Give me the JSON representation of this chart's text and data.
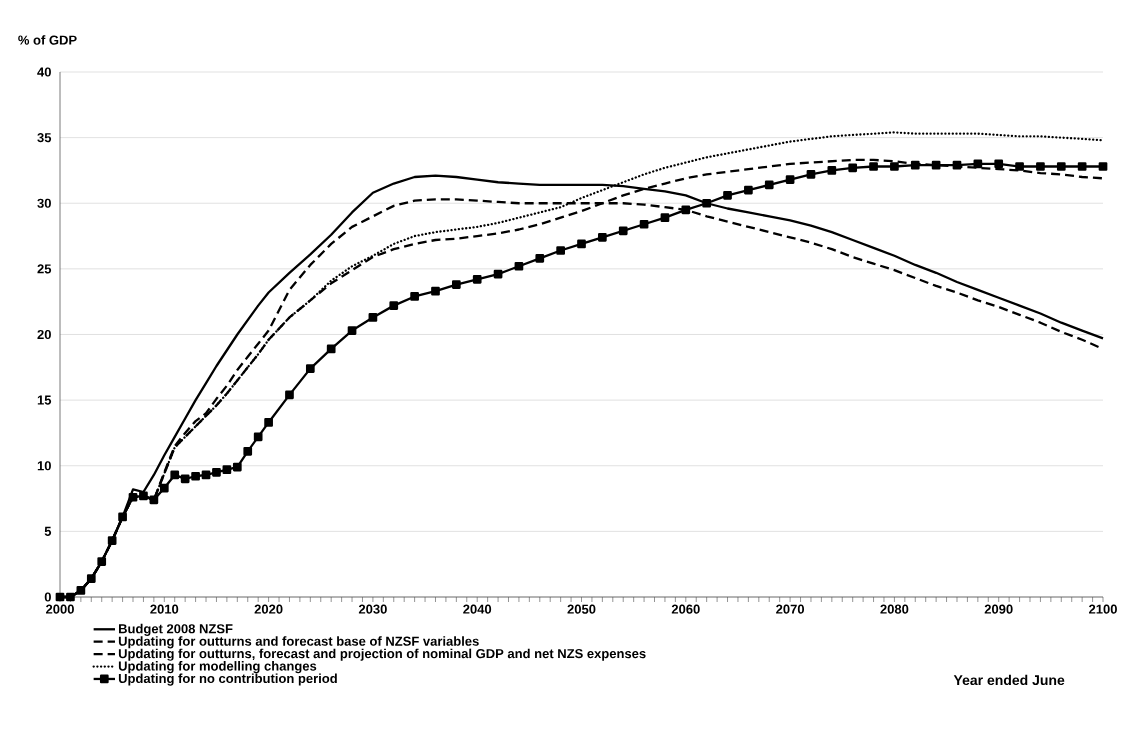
{
  "chart_data": {
    "type": "line",
    "ylabel": "% of GDP",
    "xlabel": "Year ended June",
    "x": [
      2000,
      2001,
      2002,
      2003,
      2004,
      2005,
      2006,
      2007,
      2008,
      2009,
      2010,
      2011,
      2012,
      2013,
      2014,
      2015,
      2016,
      2017,
      2018,
      2019,
      2020,
      2022,
      2024,
      2026,
      2028,
      2030,
      2032,
      2034,
      2036,
      2038,
      2040,
      2042,
      2044,
      2046,
      2048,
      2050,
      2052,
      2054,
      2056,
      2058,
      2060,
      2062,
      2064,
      2066,
      2068,
      2070,
      2072,
      2074,
      2076,
      2078,
      2080,
      2082,
      2084,
      2086,
      2088,
      2090,
      2092,
      2094,
      2096,
      2098,
      2100
    ],
    "series": [
      {
        "name": "Budget 2008 NZSF",
        "color": "#000000",
        "line_style": "solid",
        "marker": "none",
        "values": [
          0,
          0,
          0.5,
          1.4,
          2.7,
          4.3,
          6.1,
          8.2,
          8.0,
          9.3,
          10.8,
          12.2,
          13.6,
          15.0,
          16.3,
          17.6,
          18.8,
          20.0,
          21.1,
          22.2,
          23.2,
          24.7,
          26.1,
          27.6,
          29.3,
          30.8,
          31.5,
          32.0,
          32.1,
          32.0,
          31.8,
          31.6,
          31.5,
          31.4,
          31.4,
          31.4,
          31.4,
          31.3,
          31.1,
          30.9,
          30.6,
          30.0,
          29.6,
          29.3,
          29.0,
          28.7,
          28.3,
          27.8,
          27.2,
          26.6,
          26.0,
          25.3,
          24.7,
          24.0,
          23.4,
          22.8,
          22.2,
          21.6,
          20.9,
          20.3,
          19.7
        ]
      },
      {
        "name": "Updating for outturns and forecast base of NZSF variables",
        "color": "#000000",
        "line_style": "dashed",
        "marker": "none",
        "values": [
          0,
          0,
          0.5,
          1.4,
          2.7,
          4.3,
          6.1,
          7.6,
          7.7,
          7.4,
          9.5,
          11.5,
          12.5,
          13.4,
          14.0,
          15.1,
          16.1,
          17.3,
          18.3,
          19.3,
          20.3,
          23.4,
          25.3,
          26.9,
          28.2,
          29.0,
          29.8,
          30.2,
          30.3,
          30.3,
          30.2,
          30.1,
          30.0,
          30.0,
          30.0,
          30.0,
          30.0,
          30.0,
          29.9,
          29.7,
          29.5,
          29.0,
          28.6,
          28.2,
          27.8,
          27.4,
          27.0,
          26.5,
          25.9,
          25.4,
          24.9,
          24.3,
          23.7,
          23.2,
          22.6,
          22.1,
          21.5,
          20.9,
          20.2,
          19.6,
          18.9
        ]
      },
      {
        "name": "Updating for outturns, forecast and projection of nominal GDP and net NZS expenses",
        "color": "#000000",
        "line_style": "dashed",
        "marker": "none",
        "values": [
          0,
          0,
          0.5,
          1.4,
          2.7,
          4.3,
          6.1,
          7.6,
          7.7,
          7.4,
          9.4,
          11.4,
          12.2,
          13.0,
          13.8,
          14.6,
          15.5,
          16.5,
          17.5,
          18.5,
          19.6,
          21.3,
          22.6,
          23.9,
          24.9,
          25.9,
          26.5,
          26.9,
          27.2,
          27.3,
          27.5,
          27.7,
          28.0,
          28.4,
          28.9,
          29.4,
          30.0,
          30.6,
          31.1,
          31.5,
          31.9,
          32.2,
          32.4,
          32.6,
          32.8,
          33.0,
          33.1,
          33.2,
          33.3,
          33.3,
          33.2,
          33.0,
          32.9,
          32.8,
          32.7,
          32.6,
          32.5,
          32.3,
          32.2,
          32.0,
          31.9
        ]
      },
      {
        "name": "Updating for modelling changes",
        "color": "#000000",
        "line_style": "dotted",
        "marker": "none",
        "values": [
          0,
          0,
          0.5,
          1.4,
          2.7,
          4.3,
          6.1,
          7.6,
          7.7,
          7.4,
          9.4,
          11.4,
          12.2,
          13.0,
          13.8,
          14.6,
          15.5,
          16.5,
          17.5,
          18.5,
          19.6,
          21.3,
          22.6,
          24.1,
          25.2,
          26.0,
          26.9,
          27.5,
          27.8,
          28.0,
          28.2,
          28.5,
          28.9,
          29.3,
          29.7,
          30.4,
          31.0,
          31.6,
          32.2,
          32.7,
          33.1,
          33.5,
          33.8,
          34.1,
          34.4,
          34.7,
          34.9,
          35.1,
          35.2,
          35.3,
          35.4,
          35.3,
          35.3,
          35.3,
          35.3,
          35.2,
          35.1,
          35.1,
          35.0,
          34.9,
          34.8
        ]
      },
      {
        "name": "Updating for no contribution period",
        "color": "#000000",
        "line_style": "solid",
        "marker": "square",
        "values": [
          0,
          0,
          0.5,
          1.4,
          2.7,
          4.3,
          6.1,
          7.6,
          7.7,
          7.4,
          8.3,
          9.3,
          9.0,
          9.2,
          9.3,
          9.5,
          9.7,
          9.9,
          11.1,
          12.2,
          13.3,
          15.4,
          17.4,
          18.9,
          20.3,
          21.3,
          22.2,
          22.9,
          23.3,
          23.8,
          24.2,
          24.6,
          25.2,
          25.8,
          26.4,
          26.9,
          27.4,
          27.9,
          28.4,
          28.9,
          29.5,
          30.0,
          30.6,
          31.0,
          31.4,
          31.8,
          32.2,
          32.5,
          32.7,
          32.8,
          32.8,
          32.9,
          32.9,
          32.9,
          33.0,
          33.0,
          32.8,
          32.8,
          32.8,
          32.8,
          32.8
        ]
      }
    ],
    "xlim": [
      2000,
      2100
    ],
    "xticks": [
      2000,
      2010,
      2020,
      2030,
      2040,
      2050,
      2060,
      2070,
      2080,
      2090,
      2100
    ],
    "ylim": [
      0,
      40
    ],
    "yticks": [
      0,
      5,
      10,
      15,
      20,
      25,
      30,
      35,
      40
    ],
    "grid": "y",
    "legend": "bottom"
  }
}
